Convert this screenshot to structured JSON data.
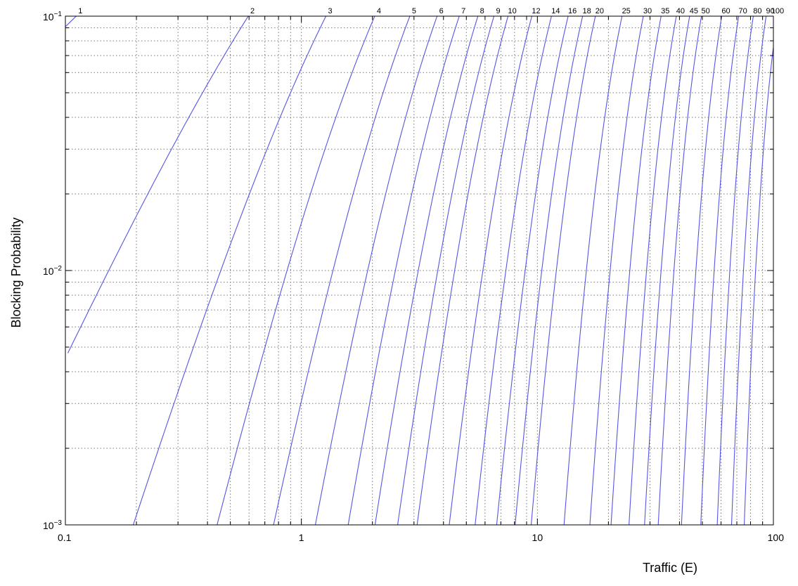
{
  "chart_data": {
    "type": "line",
    "title": "",
    "xlabel": "Traffic (E)",
    "ylabel": "Blocking Probability",
    "x_scale": "log",
    "y_scale": "log",
    "xlim": [
      0.1,
      100
    ],
    "ylim": [
      0.001,
      0.1
    ],
    "x_ticks": [
      {
        "v": 0.1,
        "label": "0.1"
      },
      {
        "v": 1,
        "label": "1"
      },
      {
        "v": 10,
        "label": "10"
      },
      {
        "v": 100,
        "label": "100"
      }
    ],
    "y_ticks": [
      {
        "v": 0.001,
        "base": "10",
        "exp": "−3"
      },
      {
        "v": 0.01,
        "base": "10",
        "exp": "−2"
      },
      {
        "v": 0.1,
        "base": "10",
        "exp": "−1"
      }
    ],
    "grid": true,
    "grid_style": "dotted",
    "line_color": "#5555e6",
    "series_labels": [
      "1",
      "2",
      "3",
      "4",
      "5",
      "6",
      "7",
      "8",
      "9",
      "10",
      "12",
      "14",
      "16",
      "18",
      "20",
      "25",
      "30",
      "35",
      "40",
      "45",
      "50",
      "60",
      "70",
      "80",
      "90",
      "100"
    ],
    "series_label_source": "number of channels labelled at top of each Erlang B curve"
  }
}
